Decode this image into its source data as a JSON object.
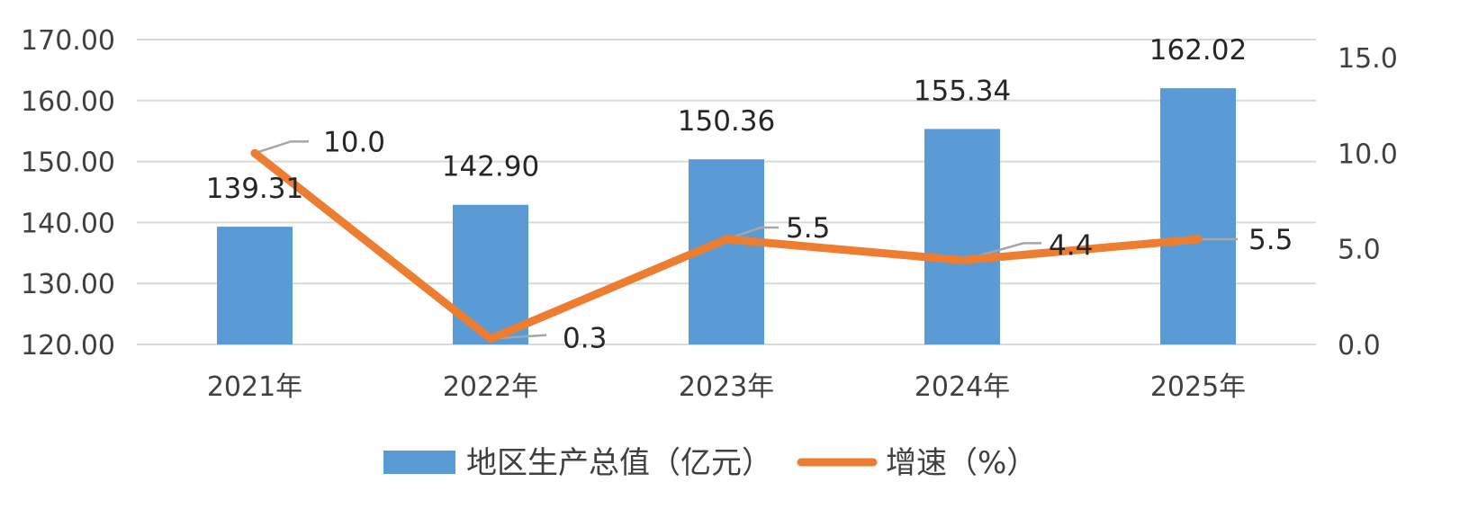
{
  "chart_data": {
    "type": "bar+line",
    "title": "",
    "categories": [
      "2021年",
      "2022年",
      "2023年",
      "2024年",
      "2025年"
    ],
    "series": [
      {
        "name": "地区生产总值（亿元）",
        "type": "bar",
        "axis": "left",
        "color": "#5B9BD5",
        "values": [
          139.31,
          142.9,
          150.36,
          155.34,
          162.02
        ],
        "labels": [
          "139.31",
          "142.90",
          "150.36",
          "155.34",
          "162.02"
        ]
      },
      {
        "name": "增速（%）",
        "type": "line",
        "axis": "right",
        "color": "#ED7D31",
        "values": [
          10.0,
          0.3,
          5.5,
          4.4,
          5.5
        ],
        "labels": [
          "10.0",
          "0.3",
          "5.5",
          "4.4",
          "5.5"
        ]
      }
    ],
    "y_left": {
      "range": [
        120,
        170
      ],
      "ticks": [
        "120.00",
        "130.00",
        "140.00",
        "150.00",
        "160.00",
        "170.00"
      ]
    },
    "y_right": {
      "range": [
        0,
        16
      ],
      "ticks": [
        "0.0",
        "5.0",
        "10.0",
        "15.0"
      ]
    },
    "grid": true,
    "legend_position": "bottom"
  }
}
